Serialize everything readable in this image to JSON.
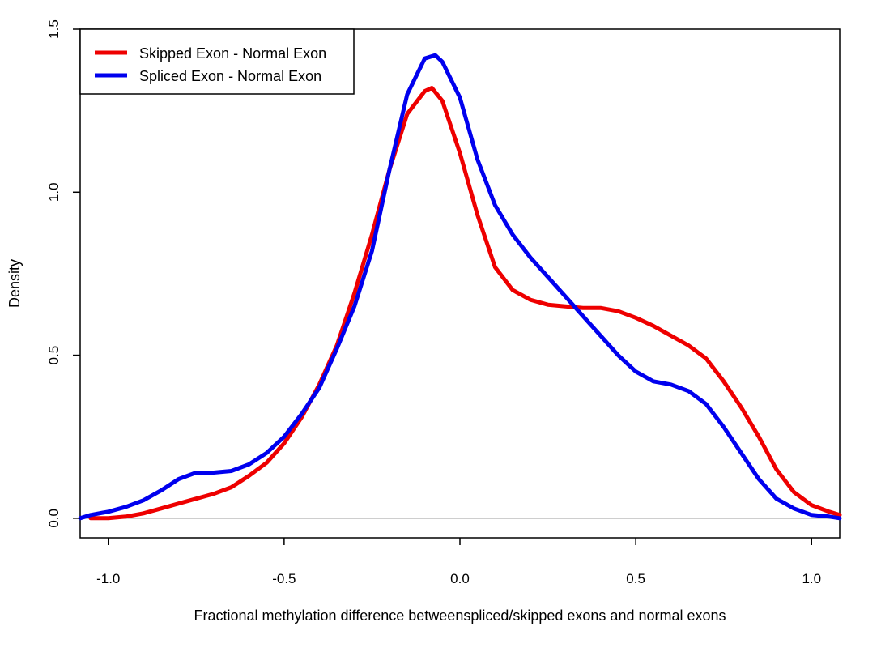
{
  "chart_data": {
    "type": "line",
    "title": "",
    "xlabel": "Fractional methylation difference betweenspliced/skipped exons and normal exons",
    "ylabel": "Density",
    "xlim": [
      -1.08,
      1.08
    ],
    "ylim": [
      -0.06,
      1.5
    ],
    "x_ticks": [
      -1.0,
      -0.5,
      0.0,
      0.5,
      1.0
    ],
    "x_tick_labels": [
      "-1.0",
      "-0.5",
      "0.0",
      "0.5",
      "1.0"
    ],
    "y_ticks": [
      0.0,
      0.5,
      1.0,
      1.5
    ],
    "y_tick_labels": [
      "0.0",
      "0.5",
      "1.0",
      "1.5"
    ],
    "baseline_y": 0.0,
    "baseline_color": "#b0b0b0",
    "grid": false,
    "legend_position": "top-left",
    "series": [
      {
        "name": "Skipped Exon - Normal Exon",
        "color": "#ee0000",
        "x": [
          -1.05,
          -1.0,
          -0.95,
          -0.9,
          -0.85,
          -0.8,
          -0.75,
          -0.7,
          -0.65,
          -0.6,
          -0.55,
          -0.5,
          -0.45,
          -0.4,
          -0.35,
          -0.3,
          -0.25,
          -0.2,
          -0.15,
          -0.1,
          -0.08,
          -0.05,
          0.0,
          0.05,
          0.1,
          0.15,
          0.2,
          0.25,
          0.3,
          0.35,
          0.4,
          0.45,
          0.5,
          0.55,
          0.6,
          0.65,
          0.7,
          0.75,
          0.8,
          0.85,
          0.9,
          0.95,
          1.0,
          1.05,
          1.08
        ],
        "y": [
          0.0,
          0.0,
          0.005,
          0.015,
          0.03,
          0.045,
          0.06,
          0.075,
          0.095,
          0.13,
          0.17,
          0.23,
          0.31,
          0.41,
          0.53,
          0.69,
          0.87,
          1.07,
          1.24,
          1.31,
          1.32,
          1.28,
          1.12,
          0.93,
          0.77,
          0.7,
          0.67,
          0.655,
          0.65,
          0.645,
          0.645,
          0.635,
          0.615,
          0.59,
          0.56,
          0.53,
          0.49,
          0.42,
          0.34,
          0.25,
          0.15,
          0.08,
          0.04,
          0.02,
          0.01
        ]
      },
      {
        "name": "Spliced Exon - Normal Exon",
        "color": "#0000ee",
        "x": [
          -1.08,
          -1.05,
          -1.0,
          -0.95,
          -0.9,
          -0.85,
          -0.8,
          -0.75,
          -0.7,
          -0.65,
          -0.6,
          -0.55,
          -0.5,
          -0.45,
          -0.4,
          -0.35,
          -0.3,
          -0.25,
          -0.2,
          -0.15,
          -0.1,
          -0.07,
          -0.05,
          0.0,
          0.05,
          0.1,
          0.15,
          0.2,
          0.25,
          0.3,
          0.35,
          0.4,
          0.45,
          0.5,
          0.55,
          0.6,
          0.65,
          0.7,
          0.75,
          0.8,
          0.85,
          0.9,
          0.95,
          1.0,
          1.05,
          1.08
        ],
        "y": [
          0.0,
          0.01,
          0.02,
          0.035,
          0.055,
          0.085,
          0.12,
          0.14,
          0.14,
          0.145,
          0.165,
          0.2,
          0.25,
          0.32,
          0.4,
          0.52,
          0.65,
          0.82,
          1.07,
          1.3,
          1.41,
          1.42,
          1.4,
          1.29,
          1.1,
          0.96,
          0.87,
          0.8,
          0.74,
          0.68,
          0.62,
          0.56,
          0.5,
          0.45,
          0.42,
          0.41,
          0.39,
          0.35,
          0.28,
          0.2,
          0.12,
          0.06,
          0.03,
          0.01,
          0.005,
          0.0
        ]
      }
    ]
  }
}
